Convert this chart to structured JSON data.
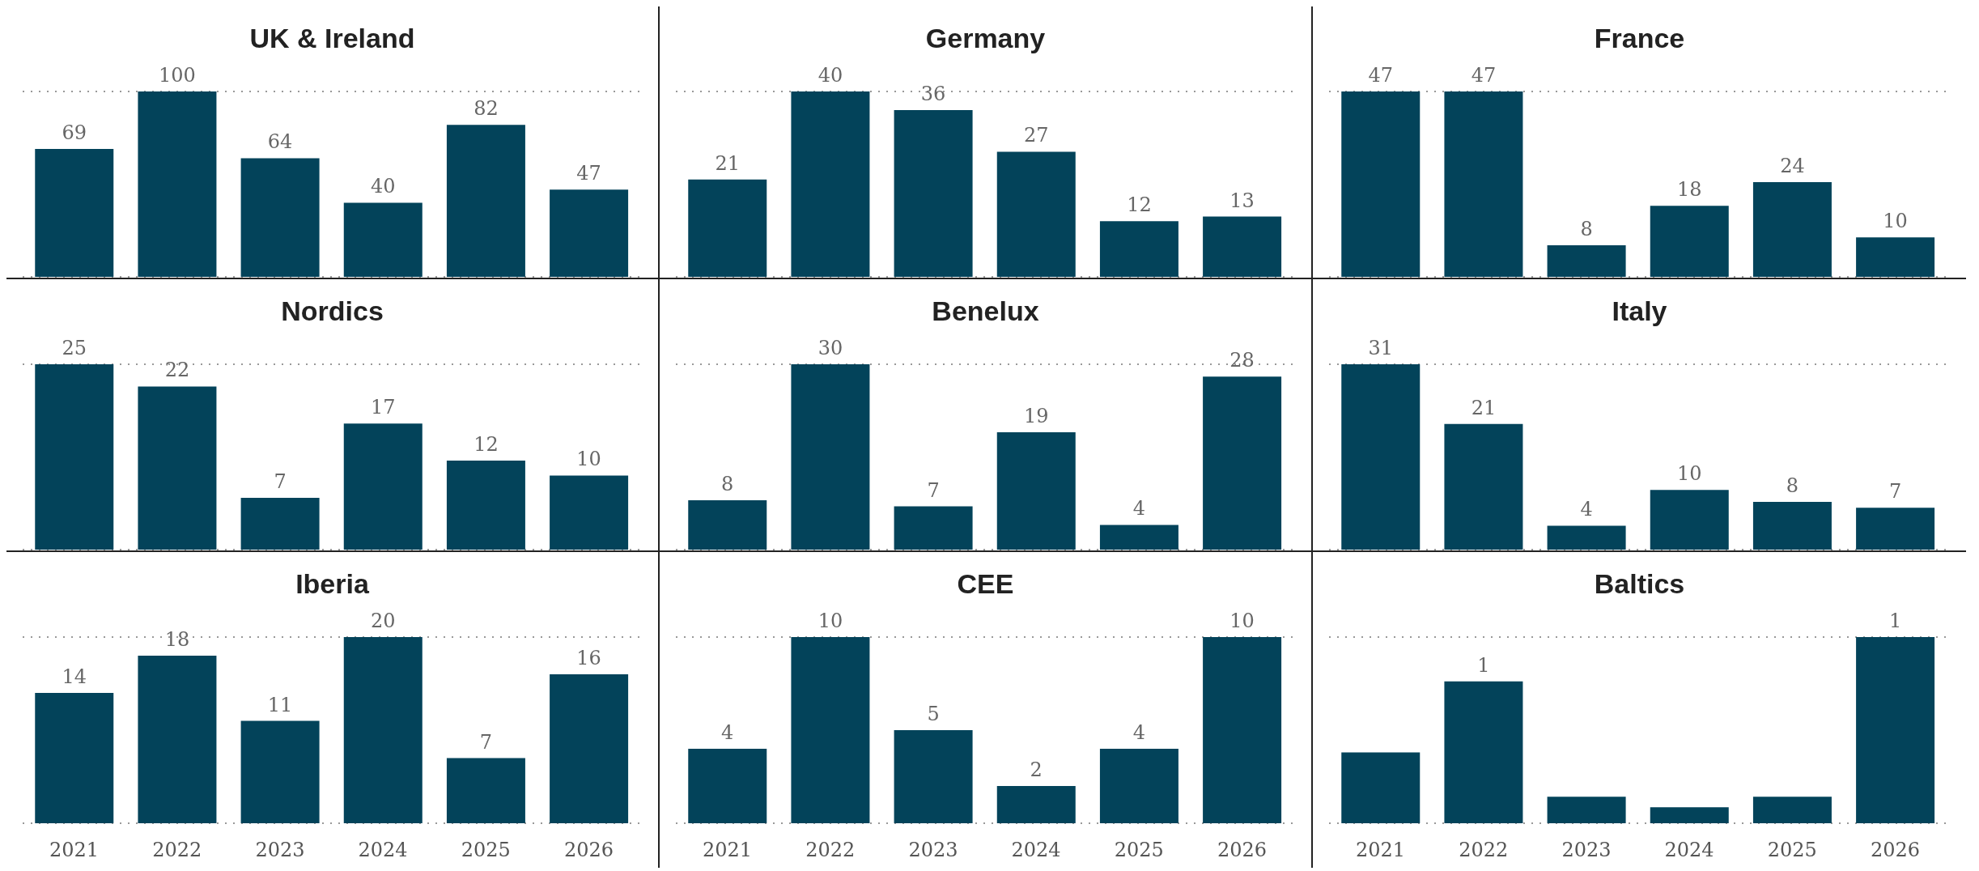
{
  "chart_data": [
    {
      "type": "bar",
      "title": "UK & Ireland",
      "categories": [
        "2021",
        "2022",
        "2023",
        "2024",
        "2025",
        "2026"
      ],
      "values": [
        69,
        100,
        64,
        40,
        82,
        47
      ],
      "color": "#03435a",
      "data_labels": true,
      "grid": "y",
      "tick_labels": false
    },
    {
      "type": "bar",
      "title": "Germany",
      "categories": [
        "2021",
        "2022",
        "2023",
        "2024",
        "2025",
        "2026"
      ],
      "values": [
        21,
        40,
        36,
        27,
        12,
        13
      ],
      "color": "#03435a",
      "data_labels": true,
      "grid": "y",
      "tick_labels": false
    },
    {
      "type": "bar",
      "title": "France",
      "categories": [
        "2021",
        "2022",
        "2023",
        "2024",
        "2025",
        "2026"
      ],
      "values": [
        47,
        47,
        8,
        18,
        24,
        10
      ],
      "color": "#03435a",
      "data_labels": true,
      "grid": "y",
      "tick_labels": false
    },
    {
      "type": "bar",
      "title": "Nordics",
      "categories": [
        "2021",
        "2022",
        "2023",
        "2024",
        "2025",
        "2026"
      ],
      "values": [
        25,
        22,
        7,
        17,
        12,
        10
      ],
      "color": "#03435a",
      "data_labels": true,
      "grid": "y",
      "tick_labels": false
    },
    {
      "type": "bar",
      "title": "Benelux",
      "categories": [
        "2021",
        "2022",
        "2023",
        "2024",
        "2025",
        "2026"
      ],
      "values": [
        8,
        30,
        7,
        19,
        4,
        28
      ],
      "color": "#03435a",
      "data_labels": true,
      "grid": "y",
      "tick_labels": false
    },
    {
      "type": "bar",
      "title": "Italy",
      "categories": [
        "2021",
        "2022",
        "2023",
        "2024",
        "2025",
        "2026"
      ],
      "values": [
        31,
        21,
        4,
        10,
        8,
        7
      ],
      "color": "#03435a",
      "data_labels": true,
      "grid": "y",
      "tick_labels": false
    },
    {
      "type": "bar",
      "title": "Iberia",
      "categories": [
        "2021",
        "2022",
        "2023",
        "2024",
        "2025",
        "2026"
      ],
      "values": [
        14,
        18,
        11,
        20,
        7,
        16
      ],
      "color": "#03435a",
      "data_labels": true,
      "grid": "y",
      "tick_labels": "x"
    },
    {
      "type": "bar",
      "title": "CEE",
      "categories": [
        "2021",
        "2022",
        "2023",
        "2024",
        "2025",
        "2026"
      ],
      "values": [
        4,
        10,
        5,
        2,
        4,
        10
      ],
      "color": "#03435a",
      "data_labels": true,
      "grid": "y",
      "tick_labels": "x"
    },
    {
      "type": "bar",
      "title": "Baltics",
      "categories": [
        "2021",
        "2022",
        "2023",
        "2024",
        "2025",
        "2026"
      ],
      "values": [
        0.4,
        0.8,
        0.15,
        0.09,
        0.15,
        1.05
      ],
      "value_labels": [
        null,
        "1",
        null,
        null,
        null,
        "1"
      ],
      "color": "#03435a",
      "grid": "y",
      "tick_labels": "x"
    }
  ]
}
